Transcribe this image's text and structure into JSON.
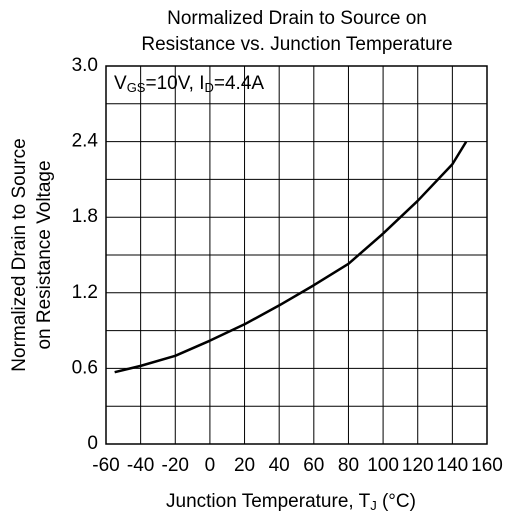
{
  "chart_data": {
    "type": "line",
    "title": [
      "Normalized Drain to Source on",
      "Resistance vs. Junction Temperature"
    ],
    "ylabel": [
      "Normalized Drain to Source",
      "on Resistance Voltage"
    ],
    "xlabel": [
      "Junction Temperature, T",
      "J",
      " (°C)"
    ],
    "annotation": [
      "V",
      "GS",
      "=10V, I",
      "D",
      "=4.4A"
    ],
    "x": [
      -55,
      -40,
      -20,
      0,
      20,
      40,
      60,
      80,
      100,
      120,
      140,
      148
    ],
    "series": [
      {
        "color": "#000000",
        "values": [
          0.57,
          0.62,
          0.7,
          0.82,
          0.95,
          1.1,
          1.26,
          1.43,
          1.67,
          1.93,
          2.22,
          2.4
        ]
      }
    ],
    "xlim": [
      -60,
      160
    ],
    "xticks": [
      -60,
      -40,
      -20,
      0,
      20,
      40,
      60,
      80,
      100,
      120,
      140,
      160
    ],
    "ylim": [
      0,
      3.0
    ],
    "yticks": [
      0,
      0.6,
      1.2,
      1.8,
      2.4,
      {
        "value": 3.0,
        "label": "3.0"
      }
    ],
    "yminor": [
      0.3,
      0.9,
      1.5,
      2.1,
      2.7
    ],
    "grid": true
  }
}
